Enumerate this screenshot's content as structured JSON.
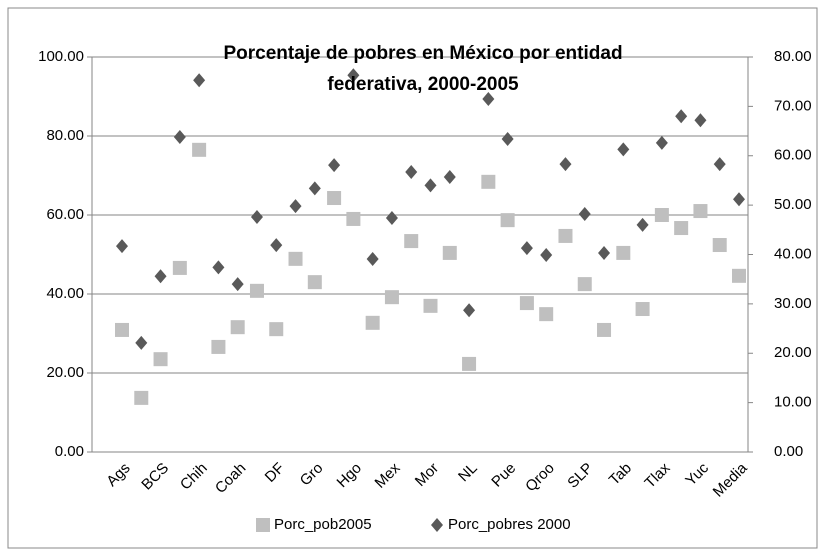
{
  "chart_data": {
    "type": "scatter",
    "title": "Porcentaje de pobres en México por entidad federativa, 2000-2005",
    "categories": [
      "Ags",
      null,
      "BCS",
      null,
      "Chih",
      null,
      "Coah",
      null,
      "DF",
      null,
      "Gro",
      null,
      "Hgo",
      null,
      "Mex",
      null,
      "Mor",
      null,
      "NL",
      null,
      "Pue",
      null,
      "Qroo",
      null,
      "SLP",
      null,
      "Tab",
      null,
      "Tlax",
      null,
      "Yuc",
      null,
      "Media"
    ],
    "series": [
      {
        "name": "Porc_pob2005",
        "color": "#bfbfbf",
        "marker": "square",
        "values": [
          30.9,
          13.7,
          23.5,
          46.6,
          76.5,
          26.6,
          31.6,
          40.8,
          31.1,
          48.9,
          43.0,
          64.3,
          59.0,
          32.7,
          39.2,
          53.4,
          37.0,
          50.4,
          22.3,
          68.4,
          58.7,
          37.7,
          34.9,
          54.7,
          42.5,
          30.9,
          50.4,
          36.2,
          60.0,
          56.7,
          61.0,
          52.4,
          44.6
        ]
      },
      {
        "name": "Porc_pobres 2000",
        "color": "#595959",
        "marker": "diamond",
        "axis": "y2",
        "values": [
          41.7,
          22.1,
          35.6,
          63.8,
          75.3,
          37.4,
          34.0,
          47.6,
          41.9,
          49.8,
          53.4,
          58.1,
          76.3,
          39.1,
          47.4,
          56.7,
          54.0,
          55.7,
          28.7,
          71.5,
          63.4,
          41.3,
          39.9,
          58.3,
          48.2,
          40.3,
          61.3,
          46.0,
          62.6,
          68.0,
          67.2,
          58.3,
          51.2
        ]
      }
    ],
    "ylim": [
      0,
      100
    ],
    "yticks": [
      {
        "value": 0,
        "label": "0.00"
      },
      {
        "value": 20,
        "label": "20.00"
      },
      {
        "value": 40,
        "label": "40.00"
      },
      {
        "value": 60,
        "label": "60.00"
      },
      {
        "value": 80,
        "label": "80.00"
      },
      {
        "value": 100,
        "label": "100.00"
      }
    ],
    "y2lim": [
      0,
      80
    ],
    "y2ticks": [
      {
        "value": 0,
        "label": "0.00"
      },
      {
        "value": 10,
        "label": "10.00"
      },
      {
        "value": 20,
        "label": "20.00"
      },
      {
        "value": 30,
        "label": "30.00"
      },
      {
        "value": 40,
        "label": "40.00"
      },
      {
        "value": 50,
        "label": "50.00"
      },
      {
        "value": 60,
        "label": "60.00"
      },
      {
        "value": 70,
        "label": "70.00"
      },
      {
        "value": 80,
        "label": "80.00"
      }
    ],
    "grid": true,
    "legend": "bottom"
  }
}
